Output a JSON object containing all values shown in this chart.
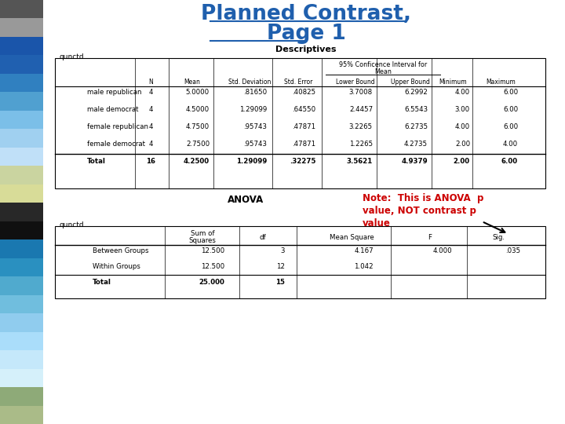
{
  "title_line1": "Planned Contrast,",
  "title_line2": "Page 1",
  "title_color": "#1F5FAD",
  "bg_color": "#FFFFFF",
  "descriptives_title": "Descriptives",
  "unctd_label": "qunctd",
  "desc_rows": [
    [
      "male republican",
      "4",
      "5.0000",
      ".81650",
      ".40825",
      "3.7008",
      "6.2992",
      "4.00",
      "6.00"
    ],
    [
      "male democrat",
      "4",
      "4.5000",
      "1.29099",
      ".64550",
      "2.4457",
      "6.5543",
      "3.00",
      "6.00"
    ],
    [
      "female republican",
      "4",
      "4.7500",
      ".95743",
      ".47871",
      "3.2265",
      "6.2735",
      "4.00",
      "6.00"
    ],
    [
      "female democrat",
      "4",
      "2.7500",
      ".95743",
      ".47871",
      "1.2265",
      "4.2735",
      "2.00",
      "4.00"
    ],
    [
      "Total",
      "16",
      "4.2500",
      "1.29099",
      ".32275",
      "3.5621",
      "4.9379",
      "2.00",
      "6.00"
    ]
  ],
  "anova_label": "ANOVA",
  "note_line1": "Note:  This is ANOVA  p",
  "note_line2": "value, NOT contrast p",
  "note_line3": "value",
  "note_color": "#CC0000",
  "anova_rows": [
    [
      "Between Groups",
      "12.500",
      "3",
      "4.167",
      "4.000",
      ".035"
    ],
    [
      "Within Groups",
      "12.500",
      "12",
      "1.042",
      "",
      ""
    ],
    [
      "Total",
      "25.000",
      "15",
      "",
      "",
      ""
    ]
  ],
  "strip_colors": [
    "#555555",
    "#999999",
    "#1A55AA",
    "#2060B0",
    "#3080C0",
    "#50A0D0",
    "#7BBFE8",
    "#A0D0F0",
    "#C0E0F8",
    "#CAD4A0",
    "#D8DC98",
    "#282828",
    "#101010",
    "#1A78B0",
    "#2A90C0",
    "#50AACE",
    "#70BEDE",
    "#90CCEE",
    "#AADDFA",
    "#C5E8FA",
    "#D5F0FA",
    "#8EAA78",
    "#AABB88"
  ]
}
